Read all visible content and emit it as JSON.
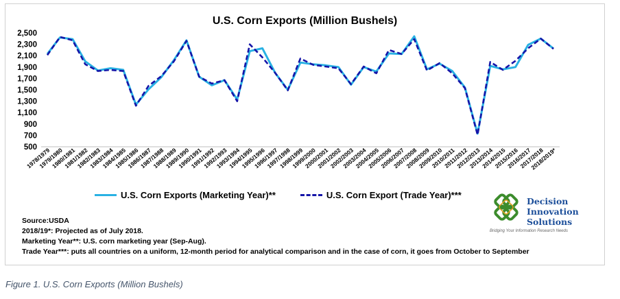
{
  "chart_data": {
    "type": "line",
    "title": "U.S. Corn Exports (Million Bushels)",
    "xlabel": "",
    "ylabel": "",
    "ylim": [
      500,
      2500
    ],
    "yticks": [
      "2,500",
      "2,300",
      "2,100",
      "1,900",
      "1,700",
      "1,500",
      "1,300",
      "1,100",
      "900",
      "700",
      "500"
    ],
    "categories": [
      "1978/1979",
      "1979/1980",
      "1980/1981",
      "1981/1982",
      "1982/1983",
      "1983/1984",
      "1984/1985",
      "1985/1986",
      "1986/1987",
      "1987/1988",
      "1988/1989",
      "1989/1990",
      "1990/1991",
      "1991/1992",
      "1992/1993",
      "1993/1994",
      "1994/1995",
      "1995/1996",
      "1996/1997",
      "1997/1998",
      "1998/1999",
      "1999/2000",
      "2000/2001",
      "2001/2002",
      "2002/2003",
      "2003/2004",
      "2004/2005",
      "2005/2006",
      "2006/2007",
      "2007/2008",
      "2008/2009",
      "2009/2010",
      "2010/2011",
      "2011/2012",
      "2012/2013",
      "2013/2014",
      "2014/2015",
      "2015/2016",
      "2016/2017",
      "2017/2018",
      "2018/2019*"
    ],
    "series": [
      {
        "name": "U.S. Corn Exports (Marketing Year)**",
        "color": "#29b1e3",
        "style": "solid",
        "values": [
          2130,
          2420,
          2390,
          2000,
          1840,
          1880,
          1850,
          1240,
          1510,
          1720,
          2020,
          2370,
          1730,
          1580,
          1670,
          1330,
          2180,
          2230,
          1800,
          1500,
          1980,
          1950,
          1930,
          1900,
          1590,
          1900,
          1820,
          2140,
          2130,
          2440,
          1860,
          1960,
          1830,
          1540,
          730,
          1920,
          1860,
          1900,
          2290,
          2400,
          2225
        ]
      },
      {
        "name": "U.S. Corn Export (Trade Year)***",
        "color": "#1515a8",
        "style": "dashed",
        "values": [
          2110,
          2430,
          2370,
          1950,
          1830,
          1850,
          1830,
          1220,
          1570,
          1740,
          2000,
          2360,
          1730,
          1610,
          1670,
          1300,
          2300,
          2070,
          1800,
          1490,
          2050,
          1940,
          1910,
          1880,
          1600,
          1910,
          1790,
          2200,
          2130,
          2390,
          1840,
          1970,
          1790,
          1530,
          710,
          1990,
          1850,
          2010,
          2230,
          2400,
          2220
        ]
      }
    ],
    "legend": "bottom"
  },
  "notes": {
    "source": "Source:USDA",
    "projected": "2018/19*: Projected as of July 2018.",
    "marketing_year": "Marketing Year**: U.S. corn marketing year (Sep-Aug).",
    "trade_year": "Trade Year***:  puts all countries on a uniform, 12-month period for analytical comparison and in the case of corn, it goes from October to  September"
  },
  "logo": {
    "line1": "Decision",
    "line2": "Innovation",
    "line3": "Solutions",
    "tagline": "Bridging Your Information Research Needs",
    "color": "#1d4f9a",
    "mark_color": "#3c8c2c"
  },
  "caption": "Figure 1. U.S. Corn Exports (Million Bushels)"
}
